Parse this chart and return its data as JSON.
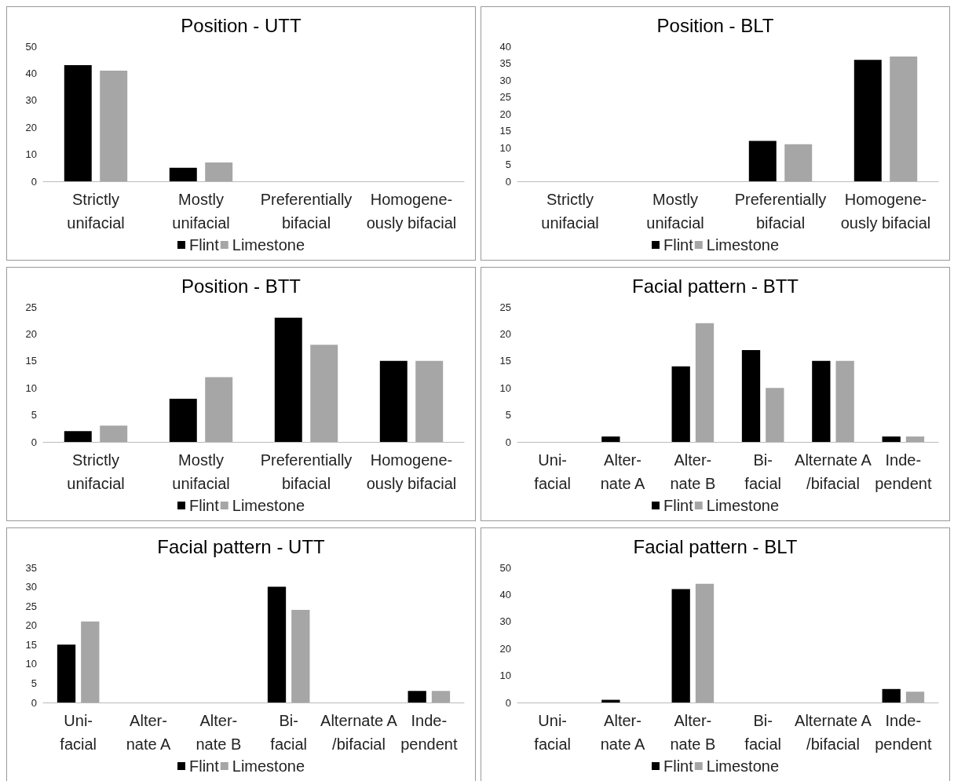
{
  "chart_data": [
    {
      "type": "bar",
      "title": "Position - UTT",
      "categories": [
        "Strictly\nunifacial",
        "Mostly\nunifacial",
        "Preferentially\nbifacial",
        "Homogene-\nously bifacial"
      ],
      "series": [
        {
          "name": "Flint",
          "color": "#000000",
          "values": [
            43,
            5,
            0,
            0
          ]
        },
        {
          "name": "Limestone",
          "color": "#a6a6a6",
          "values": [
            41,
            7,
            0,
            0
          ]
        }
      ],
      "ylim": [
        0,
        50
      ],
      "yticks": [
        0,
        10,
        20,
        30,
        40,
        50
      ],
      "grid": false,
      "legend": "bottom"
    },
    {
      "type": "bar",
      "title": "Position - BLT",
      "categories": [
        "Strictly\nunifacial",
        "Mostly\nunifacial",
        "Preferentially\nbifacial",
        "Homogene-\nously bifacial"
      ],
      "series": [
        {
          "name": "Flint",
          "color": "#000000",
          "values": [
            0,
            0,
            12,
            36
          ]
        },
        {
          "name": "Limestone",
          "color": "#a6a6a6",
          "values": [
            0,
            0,
            11,
            37
          ]
        }
      ],
      "ylim": [
        0,
        40
      ],
      "yticks": [
        0,
        5,
        10,
        15,
        20,
        25,
        30,
        35,
        40
      ],
      "grid": false,
      "legend": "bottom"
    },
    {
      "type": "bar",
      "title": "Position - BTT",
      "categories": [
        "Strictly\nunifacial",
        "Mostly\nunifacial",
        "Preferentially\nbifacial",
        "Homogene-\nously bifacial"
      ],
      "series": [
        {
          "name": "Flint",
          "color": "#000000",
          "values": [
            2,
            8,
            23,
            15
          ]
        },
        {
          "name": "Limestone",
          "color": "#a6a6a6",
          "values": [
            3,
            12,
            18,
            15
          ]
        }
      ],
      "ylim": [
        0,
        25
      ],
      "yticks": [
        0,
        5,
        10,
        15,
        20,
        25
      ],
      "grid": false,
      "legend": "bottom"
    },
    {
      "type": "bar",
      "title": "Facial pattern - BTT",
      "categories": [
        "Uni-\nfacial",
        "Alter-\nnate A",
        "Alter-\nnate B",
        "Bi-\nfacial",
        "Alternate A\n/bifacial",
        "Inde-\npendent"
      ],
      "series": [
        {
          "name": "Flint",
          "color": "#000000",
          "values": [
            0,
            1,
            14,
            17,
            15,
            1
          ]
        },
        {
          "name": "Limestone",
          "color": "#a6a6a6",
          "values": [
            0,
            0,
            22,
            10,
            15,
            1
          ]
        }
      ],
      "ylim": [
        0,
        25
      ],
      "yticks": [
        0,
        5,
        10,
        15,
        20,
        25
      ],
      "grid": false,
      "legend": "bottom"
    },
    {
      "type": "bar",
      "title": "Facial pattern - UTT",
      "categories": [
        "Uni-\nfacial",
        "Alter-\nnate A",
        "Alter-\nnate B",
        "Bi-\nfacial",
        "Alternate A\n/bifacial",
        "Inde-\npendent"
      ],
      "series": [
        {
          "name": "Flint",
          "color": "#000000",
          "values": [
            15,
            0,
            0,
            30,
            0,
            3
          ]
        },
        {
          "name": "Limestone",
          "color": "#a6a6a6",
          "values": [
            21,
            0,
            0,
            24,
            0,
            3
          ]
        }
      ],
      "ylim": [
        0,
        35
      ],
      "yticks": [
        0,
        5,
        10,
        15,
        20,
        25,
        30,
        35
      ],
      "grid": false,
      "legend": "bottom"
    },
    {
      "type": "bar",
      "title": "Facial pattern - BLT",
      "categories": [
        "Uni-\nfacial",
        "Alter-\nnate A",
        "Alter-\nnate B",
        "Bi-\nfacial",
        "Alternate A\n/bifacial",
        "Inde-\npendent"
      ],
      "series": [
        {
          "name": "Flint",
          "color": "#000000",
          "values": [
            0,
            1,
            42,
            0,
            0,
            5
          ]
        },
        {
          "name": "Limestone",
          "color": "#a6a6a6",
          "values": [
            0,
            0,
            44,
            0,
            0,
            4
          ]
        }
      ],
      "ylim": [
        0,
        50
      ],
      "yticks": [
        0,
        10,
        20,
        30,
        40,
        50
      ],
      "grid": false,
      "legend": "bottom"
    }
  ]
}
